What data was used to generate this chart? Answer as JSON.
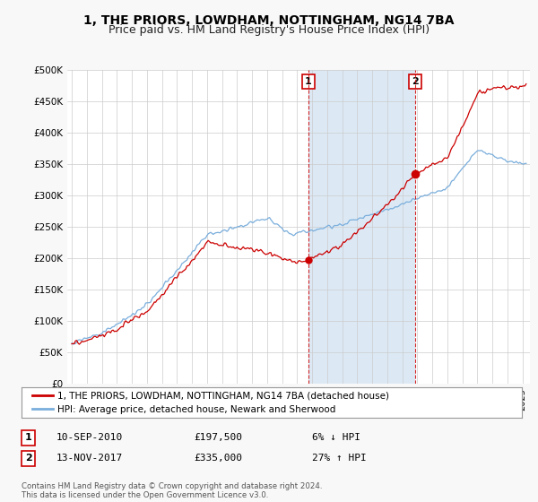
{
  "title": "1, THE PRIORS, LOWDHAM, NOTTINGHAM, NG14 7BA",
  "subtitle": "Price paid vs. HM Land Registry's House Price Index (HPI)",
  "ylabel_ticks": [
    "£0",
    "£50K",
    "£100K",
    "£150K",
    "£200K",
    "£250K",
    "£300K",
    "£350K",
    "£400K",
    "£450K",
    "£500K"
  ],
  "ytick_values": [
    0,
    50000,
    100000,
    150000,
    200000,
    250000,
    300000,
    350000,
    400000,
    450000,
    500000
  ],
  "ylim": [
    0,
    500000
  ],
  "xlim_start": 1994.7,
  "xlim_end": 2025.5,
  "background_color": "#f8f8f8",
  "plot_bg_color": "#ffffff",
  "shade_color": "#dce9f5",
  "line1_color": "#cc0000",
  "line2_color": "#7aaedc",
  "sale1_date": 2010.71,
  "sale1_price": 197500,
  "sale2_date": 2017.87,
  "sale2_price": 335000,
  "legend_line1": "1, THE PRIORS, LOWDHAM, NOTTINGHAM, NG14 7BA (detached house)",
  "legend_line2": "HPI: Average price, detached house, Newark and Sherwood",
  "annotation1_label": "1",
  "annotation1_date": "10-SEP-2010",
  "annotation1_price": "£197,500",
  "annotation1_hpi": "6% ↓ HPI",
  "annotation2_label": "2",
  "annotation2_date": "13-NOV-2017",
  "annotation2_price": "£335,000",
  "annotation2_hpi": "27% ↑ HPI",
  "footer": "Contains HM Land Registry data © Crown copyright and database right 2024.\nThis data is licensed under the Open Government Licence v3.0.",
  "title_fontsize": 10,
  "subtitle_fontsize": 9
}
